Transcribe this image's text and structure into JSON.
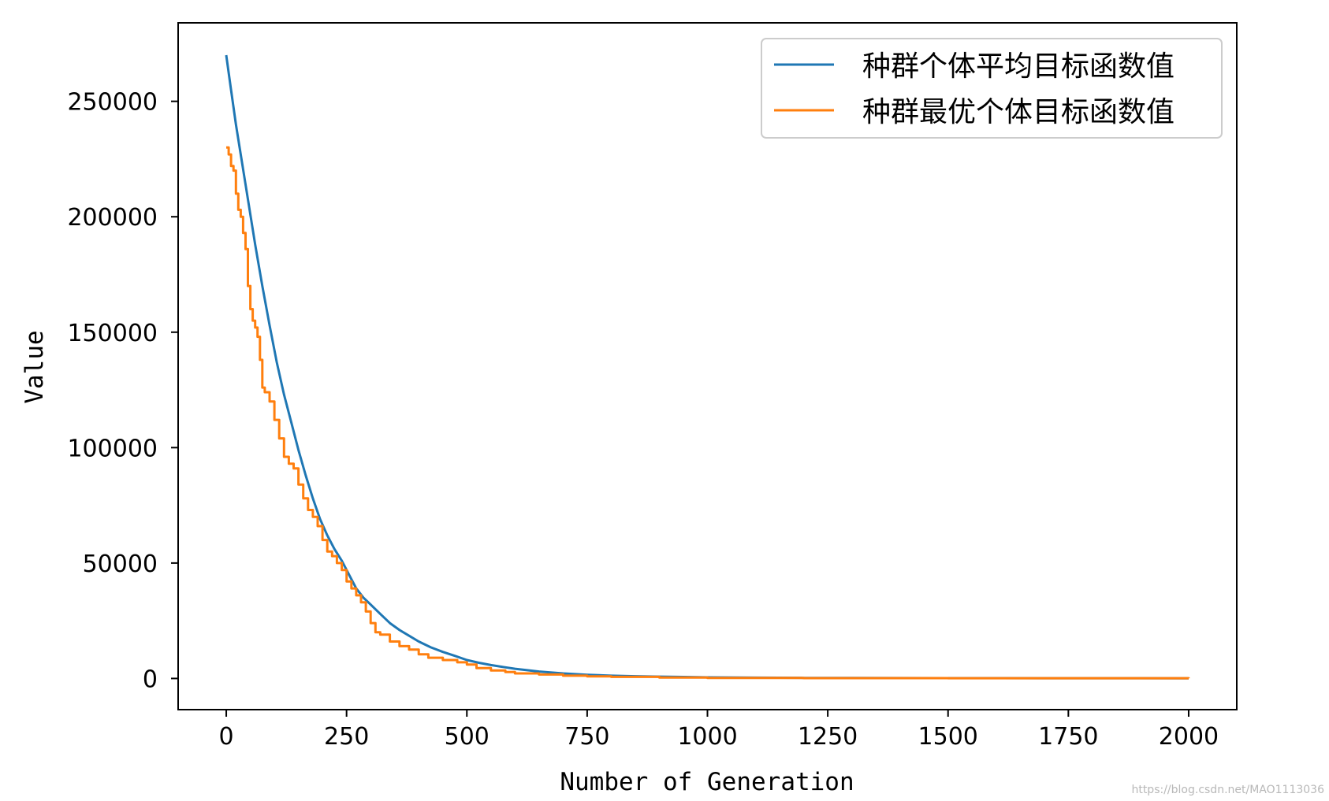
{
  "chart_data": {
    "type": "line",
    "title": "",
    "xlabel": "Number of Generation",
    "ylabel": "Value",
    "xlim": [
      -100,
      2100
    ],
    "ylim": [
      -13500,
      284000
    ],
    "xticks": [
      0,
      250,
      500,
      750,
      1000,
      1250,
      1500,
      1750,
      2000
    ],
    "yticks": [
      0,
      50000,
      100000,
      150000,
      200000,
      250000
    ],
    "grid": false,
    "legend_position": "top-right",
    "series": [
      {
        "name": "种群个体平均目标函数值",
        "color": "#1f77b4",
        "step": false,
        "x": [
          0,
          10,
          20,
          30,
          40,
          50,
          60,
          75,
          90,
          105,
          120,
          135,
          150,
          165,
          180,
          195,
          210,
          225,
          240,
          255,
          270,
          285,
          300,
          320,
          340,
          360,
          380,
          400,
          425,
          450,
          475,
          500,
          525,
          550,
          575,
          600,
          650,
          700,
          750,
          800,
          850,
          900,
          950,
          1000,
          1100,
          1200,
          1300,
          1400,
          1500,
          1600,
          1700,
          1800,
          1900,
          2000
        ],
        "y": [
          270000,
          255000,
          240000,
          227000,
          214000,
          201000,
          188000,
          170000,
          153000,
          137000,
          123000,
          111000,
          99000,
          88000,
          78000,
          69000,
          62000,
          56000,
          51000,
          45000,
          39000,
          35000,
          32000,
          28000,
          24000,
          21000,
          18500,
          16000,
          13500,
          11500,
          9800,
          8000,
          6800,
          5800,
          5000,
          4200,
          3000,
          2200,
          1600,
          1200,
          950,
          800,
          650,
          500,
          350,
          250,
          200,
          180,
          160,
          140,
          120,
          110,
          100,
          90
        ]
      },
      {
        "name": "种群最优个体目标函数值",
        "color": "#ff7f0e",
        "step": true,
        "x": [
          0,
          5,
          10,
          15,
          20,
          25,
          30,
          35,
          40,
          45,
          50,
          55,
          60,
          65,
          70,
          75,
          80,
          90,
          100,
          110,
          120,
          130,
          140,
          150,
          160,
          170,
          180,
          190,
          200,
          210,
          220,
          230,
          240,
          250,
          260,
          270,
          280,
          290,
          300,
          310,
          320,
          340,
          360,
          380,
          400,
          420,
          450,
          480,
          500,
          520,
          550,
          580,
          600,
          650,
          700,
          750,
          800,
          900,
          1000,
          1200,
          1500,
          2000
        ],
        "y": [
          230000,
          227000,
          222000,
          220000,
          210000,
          203000,
          200000,
          193000,
          186000,
          170000,
          160000,
          155000,
          152000,
          148000,
          138000,
          126000,
          124000,
          120000,
          112000,
          104000,
          96000,
          93000,
          91000,
          84000,
          78000,
          73000,
          70000,
          66000,
          60000,
          55000,
          53000,
          50000,
          47000,
          42000,
          39000,
          36000,
          33000,
          29000,
          24000,
          20000,
          19000,
          16000,
          14000,
          12500,
          10500,
          9000,
          8000,
          7000,
          6000,
          4500,
          3500,
          2800,
          2200,
          1700,
          1200,
          900,
          700,
          400,
          250,
          150,
          100,
          80
        ]
      }
    ]
  },
  "watermark": "https://blog.csdn.net/MAO1113036"
}
